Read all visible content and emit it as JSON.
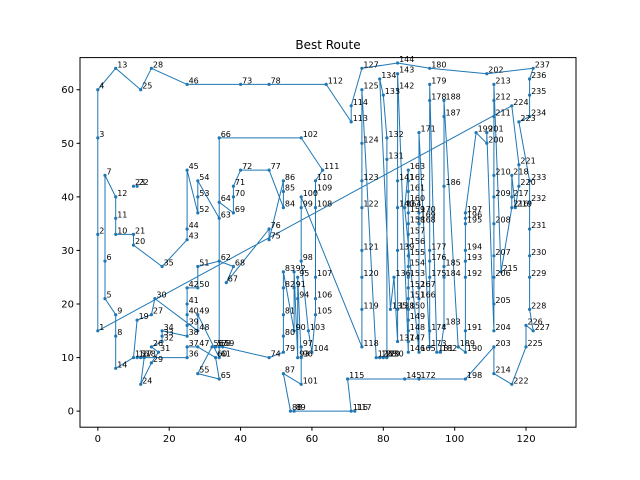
{
  "chart_data": {
    "type": "line",
    "title": "Best Route",
    "xlabel": "",
    "ylabel": "",
    "xlim": [
      -5,
      134
    ],
    "ylim": [
      -3,
      66
    ],
    "xticks": [
      "0",
      "20",
      "40",
      "60",
      "80",
      "100",
      "120"
    ],
    "xtick_values": [
      0,
      20,
      40,
      60,
      80,
      100,
      120
    ],
    "yticks": [
      "0",
      "10",
      "20",
      "30",
      "40",
      "50",
      "60"
    ],
    "ytick_values": [
      0,
      10,
      20,
      30,
      40,
      50,
      60
    ],
    "grid": false,
    "color": "#1f77b4",
    "route": [
      1,
      2,
      3,
      4,
      13,
      25,
      28,
      46,
      73,
      78,
      112,
      113,
      114,
      127,
      144,
      180,
      202,
      237,
      236,
      235,
      234,
      223,
      233,
      232,
      231,
      230,
      229,
      228,
      227,
      226,
      225,
      222,
      214,
      203,
      198,
      172,
      145,
      115,
      116,
      117,
      89,
      88,
      87,
      101,
      97,
      96,
      95,
      94,
      93,
      92,
      91,
      90,
      83,
      82,
      81,
      80,
      79,
      74,
      59,
      58,
      57,
      56,
      55,
      65,
      60,
      47,
      37,
      36,
      16,
      17,
      18,
      24,
      29,
      31,
      26,
      32,
      33,
      34,
      38,
      39,
      40,
      41,
      42,
      50,
      51,
      62,
      68,
      67,
      76,
      75,
      86,
      85,
      84,
      77,
      72,
      71,
      70,
      69,
      64,
      63,
      54,
      53,
      52,
      45,
      44,
      43,
      35,
      20,
      21,
      10,
      11,
      12,
      7,
      6,
      5,
      9,
      8,
      14,
      15,
      19,
      27,
      30,
      48,
      49,
      61,
      66,
      102,
      111,
      110,
      109,
      108,
      107,
      106,
      105,
      104,
      103,
      98,
      99,
      100,
      118,
      119,
      120,
      121,
      122,
      123,
      124,
      125,
      126,
      128,
      129,
      130,
      131,
      132,
      133,
      134,
      135,
      136,
      137,
      138,
      139,
      140,
      141,
      142,
      143,
      146,
      147,
      148,
      149,
      150,
      151,
      152,
      153,
      154,
      155,
      156,
      157,
      158,
      159,
      160,
      161,
      162,
      163,
      164,
      165,
      166,
      167,
      168,
      169,
      170,
      171,
      173,
      174,
      175,
      176,
      177,
      178,
      179,
      181,
      182,
      183,
      184,
      185,
      186,
      187,
      188,
      189,
      190,
      191,
      192,
      193,
      194,
      195,
      196,
      197,
      199,
      200,
      201,
      204,
      205,
      206,
      207,
      208,
      209,
      210,
      211,
      212,
      213,
      215,
      216,
      217,
      218,
      219,
      220,
      221,
      224,
      1
    ],
    "points": [
      {
        "id": 1,
        "x": 0,
        "y": 15
      },
      {
        "id": 2,
        "x": 0,
        "y": 33
      },
      {
        "id": 3,
        "x": 0,
        "y": 51
      },
      {
        "id": 4,
        "x": 0,
        "y": 60
      },
      {
        "id": 5,
        "x": 2,
        "y": 21
      },
      {
        "id": 6,
        "x": 2,
        "y": 28
      },
      {
        "id": 7,
        "x": 2,
        "y": 44
      },
      {
        "id": 8,
        "x": 5,
        "y": 14
      },
      {
        "id": 9,
        "x": 5,
        "y": 18
      },
      {
        "id": 10,
        "x": 5,
        "y": 33
      },
      {
        "id": 11,
        "x": 5,
        "y": 36
      },
      {
        "id": 12,
        "x": 5,
        "y": 40
      },
      {
        "id": 13,
        "x": 5,
        "y": 64
      },
      {
        "id": 14,
        "x": 5,
        "y": 8
      },
      {
        "id": 15,
        "x": 10,
        "y": 10
      },
      {
        "id": 16,
        "x": 11,
        "y": 10
      },
      {
        "id": 17,
        "x": 12,
        "y": 10
      },
      {
        "id": 18,
        "x": 13,
        "y": 10
      },
      {
        "id": 19,
        "x": 11,
        "y": 17
      },
      {
        "id": 20,
        "x": 10,
        "y": 31
      },
      {
        "id": 21,
        "x": 10,
        "y": 33
      },
      {
        "id": 22,
        "x": 11,
        "y": 42
      },
      {
        "id": 23,
        "x": 10,
        "y": 42
      },
      {
        "id": 24,
        "x": 12,
        "y": 5
      },
      {
        "id": 25,
        "x": 12,
        "y": 60
      },
      {
        "id": 26,
        "x": 15,
        "y": 12
      },
      {
        "id": 27,
        "x": 15,
        "y": 18
      },
      {
        "id": 28,
        "x": 15,
        "y": 64
      },
      {
        "id": 29,
        "x": 15,
        "y": 9
      },
      {
        "id": 30,
        "x": 16,
        "y": 21
      },
      {
        "id": 31,
        "x": 17,
        "y": 11
      },
      {
        "id": 32,
        "x": 18,
        "y": 13
      },
      {
        "id": 33,
        "x": 18,
        "y": 14
      },
      {
        "id": 34,
        "x": 18,
        "y": 15
      },
      {
        "id": 35,
        "x": 18,
        "y": 27
      },
      {
        "id": 36,
        "x": 25,
        "y": 10
      },
      {
        "id": 37,
        "x": 25,
        "y": 12
      },
      {
        "id": 38,
        "x": 25,
        "y": 14
      },
      {
        "id": 39,
        "x": 25,
        "y": 16
      },
      {
        "id": 40,
        "x": 25,
        "y": 18
      },
      {
        "id": 41,
        "x": 25,
        "y": 20
      },
      {
        "id": 42,
        "x": 25,
        "y": 23
      },
      {
        "id": 43,
        "x": 25,
        "y": 32
      },
      {
        "id": 44,
        "x": 25,
        "y": 34
      },
      {
        "id": 45,
        "x": 25,
        "y": 45
      },
      {
        "id": 46,
        "x": 25,
        "y": 61
      },
      {
        "id": 47,
        "x": 28,
        "y": 12
      },
      {
        "id": 48,
        "x": 28,
        "y": 15
      },
      {
        "id": 49,
        "x": 28,
        "y": 18
      },
      {
        "id": 50,
        "x": 28,
        "y": 23
      },
      {
        "id": 51,
        "x": 28,
        "y": 27
      },
      {
        "id": 52,
        "x": 28,
        "y": 37
      },
      {
        "id": 53,
        "x": 28,
        "y": 40
      },
      {
        "id": 54,
        "x": 28,
        "y": 43
      },
      {
        "id": 55,
        "x": 28,
        "y": 7
      },
      {
        "id": 56,
        "x": 32,
        "y": 12
      },
      {
        "id": 57,
        "x": 33,
        "y": 12
      },
      {
        "id": 58,
        "x": 34,
        "y": 12
      },
      {
        "id": 59,
        "x": 35,
        "y": 12
      },
      {
        "id": 60,
        "x": 33,
        "y": 10
      },
      {
        "id": 61,
        "x": 34,
        "y": 10
      },
      {
        "id": 62,
        "x": 34,
        "y": 28
      },
      {
        "id": 63,
        "x": 34,
        "y": 36
      },
      {
        "id": 64,
        "x": 34,
        "y": 39
      },
      {
        "id": 65,
        "x": 34,
        "y": 6
      },
      {
        "id": 66,
        "x": 34,
        "y": 51
      },
      {
        "id": 67,
        "x": 36,
        "y": 24
      },
      {
        "id": 68,
        "x": 38,
        "y": 27
      },
      {
        "id": 69,
        "x": 38,
        "y": 37
      },
      {
        "id": 70,
        "x": 38,
        "y": 40
      },
      {
        "id": 71,
        "x": 38,
        "y": 42
      },
      {
        "id": 72,
        "x": 40,
        "y": 45
      },
      {
        "id": 73,
        "x": 40,
        "y": 61
      },
      {
        "id": 74,
        "x": 48,
        "y": 10
      },
      {
        "id": 75,
        "x": 48,
        "y": 32
      },
      {
        "id": 76,
        "x": 48,
        "y": 34
      },
      {
        "id": 77,
        "x": 48,
        "y": 45
      },
      {
        "id": 78,
        "x": 48,
        "y": 61
      },
      {
        "id": 79,
        "x": 52,
        "y": 11
      },
      {
        "id": 80,
        "x": 52,
        "y": 14
      },
      {
        "id": 81,
        "x": 52,
        "y": 18
      },
      {
        "id": 82,
        "x": 52,
        "y": 23
      },
      {
        "id": 83,
        "x": 52,
        "y": 26
      },
      {
        "id": 84,
        "x": 52,
        "y": 38
      },
      {
        "id": 85,
        "x": 52,
        "y": 41
      },
      {
        "id": 86,
        "x": 52,
        "y": 43
      },
      {
        "id": 87,
        "x": 52,
        "y": 7
      },
      {
        "id": 88,
        "x": 54,
        "y": 0
      },
      {
        "id": 89,
        "x": 55,
        "y": 0
      },
      {
        "id": 90,
        "x": 55,
        "y": 15
      },
      {
        "id": 91,
        "x": 55,
        "y": 23
      },
      {
        "id": 92,
        "x": 55,
        "y": 26
      },
      {
        "id": 93,
        "x": 56,
        "y": 10
      },
      {
        "id": 94,
        "x": 56,
        "y": 21
      },
      {
        "id": 95,
        "x": 56,
        "y": 25
      },
      {
        "id": 96,
        "x": 57,
        "y": 10
      },
      {
        "id": 97,
        "x": 57,
        "y": 12
      },
      {
        "id": 98,
        "x": 57,
        "y": 28
      },
      {
        "id": 99,
        "x": 57,
        "y": 38
      },
      {
        "id": 100,
        "x": 57,
        "y": 40
      },
      {
        "id": 101,
        "x": 57,
        "y": 5
      },
      {
        "id": 102,
        "x": 57,
        "y": 51
      },
      {
        "id": 103,
        "x": 59,
        "y": 15
      },
      {
        "id": 104,
        "x": 60,
        "y": 11
      },
      {
        "id": 105,
        "x": 61,
        "y": 18
      },
      {
        "id": 106,
        "x": 61,
        "y": 21
      },
      {
        "id": 107,
        "x": 61,
        "y": 25
      },
      {
        "id": 108,
        "x": 61,
        "y": 38
      },
      {
        "id": 109,
        "x": 61,
        "y": 41
      },
      {
        "id": 110,
        "x": 61,
        "y": 43
      },
      {
        "id": 111,
        "x": 63,
        "y": 45
      },
      {
        "id": 112,
        "x": 64,
        "y": 61
      },
      {
        "id": 113,
        "x": 71,
        "y": 54
      },
      {
        "id": 114,
        "x": 71,
        "y": 57
      },
      {
        "id": 115,
        "x": 70,
        "y": 6
      },
      {
        "id": 116,
        "x": 71,
        "y": 0
      },
      {
        "id": 117,
        "x": 72,
        "y": 0
      },
      {
        "id": 118,
        "x": 74,
        "y": 12
      },
      {
        "id": 119,
        "x": 74,
        "y": 19
      },
      {
        "id": 120,
        "x": 74,
        "y": 25
      },
      {
        "id": 121,
        "x": 74,
        "y": 30
      },
      {
        "id": 122,
        "x": 74,
        "y": 38
      },
      {
        "id": 123,
        "x": 74,
        "y": 43
      },
      {
        "id": 124,
        "x": 74,
        "y": 50
      },
      {
        "id": 125,
        "x": 74,
        "y": 60
      },
      {
        "id": 126,
        "x": 78,
        "y": 10
      },
      {
        "id": 127,
        "x": 74,
        "y": 64
      },
      {
        "id": 128,
        "x": 79,
        "y": 10
      },
      {
        "id": 129,
        "x": 80,
        "y": 10
      },
      {
        "id": 130,
        "x": 81,
        "y": 10
      },
      {
        "id": 131,
        "x": 81,
        "y": 47
      },
      {
        "id": 132,
        "x": 81,
        "y": 51
      },
      {
        "id": 133,
        "x": 80,
        "y": 59
      },
      {
        "id": 134,
        "x": 79,
        "y": 62
      },
      {
        "id": 135,
        "x": 82,
        "y": 19
      },
      {
        "id": 136,
        "x": 83,
        "y": 25
      },
      {
        "id": 137,
        "x": 84,
        "y": 13
      },
      {
        "id": 138,
        "x": 84,
        "y": 19
      },
      {
        "id": 139,
        "x": 84,
        "y": 30
      },
      {
        "id": 140,
        "x": 84,
        "y": 38
      },
      {
        "id": 141,
        "x": 84,
        "y": 43
      },
      {
        "id": 142,
        "x": 84,
        "y": 60
      },
      {
        "id": 143,
        "x": 84,
        "y": 63
      },
      {
        "id": 144,
        "x": 84,
        "y": 65
      },
      {
        "id": 145,
        "x": 86,
        "y": 6
      },
      {
        "id": 146,
        "x": 87,
        "y": 11
      },
      {
        "id": 147,
        "x": 87,
        "y": 13
      },
      {
        "id": 148,
        "x": 87,
        "y": 15
      },
      {
        "id": 149,
        "x": 87,
        "y": 17
      },
      {
        "id": 150,
        "x": 87,
        "y": 19
      },
      {
        "id": 151,
        "x": 87,
        "y": 21
      },
      {
        "id": 152,
        "x": 87,
        "y": 23
      },
      {
        "id": 153,
        "x": 87,
        "y": 25
      },
      {
        "id": 154,
        "x": 87,
        "y": 27
      },
      {
        "id": 155,
        "x": 87,
        "y": 29
      },
      {
        "id": 156,
        "x": 87,
        "y": 31
      },
      {
        "id": 157,
        "x": 87,
        "y": 33
      },
      {
        "id": 158,
        "x": 87,
        "y": 35
      },
      {
        "id": 159,
        "x": 87,
        "y": 37
      },
      {
        "id": 160,
        "x": 87,
        "y": 39
      },
      {
        "id": 161,
        "x": 87,
        "y": 41
      },
      {
        "id": 162,
        "x": 87,
        "y": 43
      },
      {
        "id": 163,
        "x": 87,
        "y": 45
      },
      {
        "id": 164,
        "x": 86,
        "y": 38
      },
      {
        "id": 165,
        "x": 90,
        "y": 11
      },
      {
        "id": 166,
        "x": 90,
        "y": 21
      },
      {
        "id": 167,
        "x": 90,
        "y": 23
      },
      {
        "id": 168,
        "x": 90,
        "y": 35
      },
      {
        "id": 169,
        "x": 90,
        "y": 36
      },
      {
        "id": 170,
        "x": 90,
        "y": 37
      },
      {
        "id": 171,
        "x": 90,
        "y": 52
      },
      {
        "id": 172,
        "x": 90,
        "y": 6
      },
      {
        "id": 173,
        "x": 93,
        "y": 12
      },
      {
        "id": 174,
        "x": 93,
        "y": 15
      },
      {
        "id": 175,
        "x": 93,
        "y": 25
      },
      {
        "id": 176,
        "x": 93,
        "y": 28
      },
      {
        "id": 177,
        "x": 93,
        "y": 30
      },
      {
        "id": 178,
        "x": 93,
        "y": 58
      },
      {
        "id": 179,
        "x": 93,
        "y": 61
      },
      {
        "id": 180,
        "x": 93,
        "y": 64
      },
      {
        "id": 181,
        "x": 95,
        "y": 11
      },
      {
        "id": 182,
        "x": 96,
        "y": 11
      },
      {
        "id": 183,
        "x": 97,
        "y": 16
      },
      {
        "id": 184,
        "x": 97,
        "y": 25
      },
      {
        "id": 185,
        "x": 97,
        "y": 27
      },
      {
        "id": 186,
        "x": 97,
        "y": 42
      },
      {
        "id": 187,
        "x": 97,
        "y": 55
      },
      {
        "id": 188,
        "x": 97,
        "y": 58
      },
      {
        "id": 189,
        "x": 101,
        "y": 12
      },
      {
        "id": 190,
        "x": 103,
        "y": 11
      },
      {
        "id": 191,
        "x": 103,
        "y": 15
      },
      {
        "id": 192,
        "x": 103,
        "y": 25
      },
      {
        "id": 193,
        "x": 103,
        "y": 28
      },
      {
        "id": 194,
        "x": 103,
        "y": 30
      },
      {
        "id": 195,
        "x": 103,
        "y": 35
      },
      {
        "id": 196,
        "x": 103,
        "y": 36
      },
      {
        "id": 197,
        "x": 103,
        "y": 37
      },
      {
        "id": 198,
        "x": 103,
        "y": 6
      },
      {
        "id": 199,
        "x": 106,
        "y": 52
      },
      {
        "id": 200,
        "x": 109,
        "y": 50
      },
      {
        "id": 201,
        "x": 109,
        "y": 52
      },
      {
        "id": 202,
        "x": 109,
        "y": 63
      },
      {
        "id": 203,
        "x": 111,
        "y": 12
      },
      {
        "id": 204,
        "x": 111,
        "y": 15
      },
      {
        "id": 205,
        "x": 111,
        "y": 20
      },
      {
        "id": 206,
        "x": 111,
        "y": 25
      },
      {
        "id": 207,
        "x": 111,
        "y": 29
      },
      {
        "id": 208,
        "x": 111,
        "y": 35
      },
      {
        "id": 209,
        "x": 111,
        "y": 40
      },
      {
        "id": 210,
        "x": 111,
        "y": 44
      },
      {
        "id": 211,
        "x": 111,
        "y": 55
      },
      {
        "id": 212,
        "x": 111,
        "y": 58
      },
      {
        "id": 213,
        "x": 111,
        "y": 61
      },
      {
        "id": 214,
        "x": 111,
        "y": 7
      },
      {
        "id": 215,
        "x": 113,
        "y": 26
      },
      {
        "id": 216,
        "x": 116,
        "y": 38
      },
      {
        "id": 217,
        "x": 116,
        "y": 40
      },
      {
        "id": 218,
        "x": 116,
        "y": 44
      },
      {
        "id": 219,
        "x": 117,
        "y": 38
      },
      {
        "id": 220,
        "x": 118,
        "y": 42
      },
      {
        "id": 221,
        "x": 118,
        "y": 46
      },
      {
        "id": 222,
        "x": 116,
        "y": 5
      },
      {
        "id": 223,
        "x": 118,
        "y": 54
      },
      {
        "id": 224,
        "x": 116,
        "y": 57
      },
      {
        "id": 225,
        "x": 120,
        "y": 12
      },
      {
        "id": 226,
        "x": 120,
        "y": 16
      },
      {
        "id": 227,
        "x": 122,
        "y": 15
      },
      {
        "id": 228,
        "x": 121,
        "y": 19
      },
      {
        "id": 229,
        "x": 121,
        "y": 25
      },
      {
        "id": 230,
        "x": 121,
        "y": 29
      },
      {
        "id": 231,
        "x": 121,
        "y": 34
      },
      {
        "id": 232,
        "x": 121,
        "y": 39
      },
      {
        "id": 233,
        "x": 121,
        "y": 43
      },
      {
        "id": 234,
        "x": 121,
        "y": 55
      },
      {
        "id": 235,
        "x": 121,
        "y": 59
      },
      {
        "id": 236,
        "x": 121,
        "y": 62
      },
      {
        "id": 237,
        "x": 122,
        "y": 64
      }
    ]
  }
}
